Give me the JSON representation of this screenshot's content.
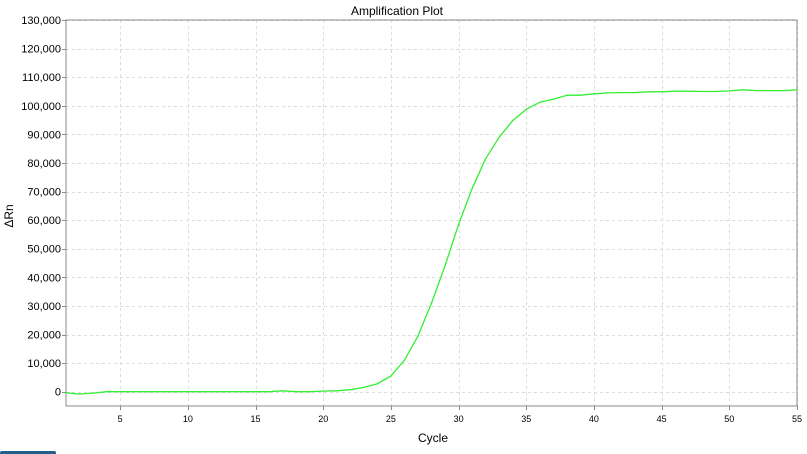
{
  "chart_data": {
    "type": "line",
    "title": "Amplification Plot",
    "xlabel": "Cycle",
    "ylabel": "ΔRn",
    "xlim": [
      1,
      55
    ],
    "ylim": [
      -5000,
      130000
    ],
    "x_ticks": [
      5,
      10,
      15,
      20,
      25,
      30,
      35,
      40,
      45,
      50,
      55
    ],
    "y_ticks": [
      0,
      10000,
      20000,
      30000,
      40000,
      50000,
      60000,
      70000,
      80000,
      90000,
      100000,
      110000,
      120000,
      130000
    ],
    "y_tick_labels": [
      "0",
      "10,000",
      "20,000",
      "30,000",
      "40,000",
      "50,000",
      "60,000",
      "70,000",
      "80,000",
      "90,000",
      "100,000",
      "110,000",
      "120,000",
      "130,000"
    ],
    "x_tick_labels": [
      "5",
      "10",
      "15",
      "20",
      "25",
      "30",
      "35",
      "40",
      "45",
      "50",
      "55"
    ],
    "grid": true,
    "series": [
      {
        "color": "#33ee33",
        "x": [
          1,
          2,
          3,
          4,
          5,
          6,
          7,
          8,
          9,
          10,
          11,
          12,
          13,
          14,
          15,
          16,
          17,
          18,
          19,
          20,
          21,
          22,
          23,
          24,
          25,
          26,
          27,
          28,
          29,
          30,
          31,
          32,
          33,
          34,
          35,
          36,
          37,
          38,
          39,
          40,
          41,
          42,
          43,
          44,
          45,
          46,
          47,
          48,
          49,
          50,
          51,
          52,
          53,
          54,
          55
        ],
        "y": [
          -400,
          -800,
          -500,
          0,
          0,
          0,
          0,
          0,
          0,
          0,
          0,
          0,
          0,
          0,
          0,
          0,
          300,
          0,
          0,
          200,
          300,
          700,
          1500,
          2800,
          5500,
          11000,
          19500,
          31000,
          44000,
          58500,
          71000,
          81500,
          89000,
          94800,
          98800,
          101200,
          102300,
          103700,
          103700,
          104200,
          104500,
          104600,
          104600,
          104900,
          104900,
          105100,
          105100,
          105000,
          105000,
          105200,
          105600,
          105300,
          105300,
          105300,
          105600
        ]
      }
    ]
  }
}
